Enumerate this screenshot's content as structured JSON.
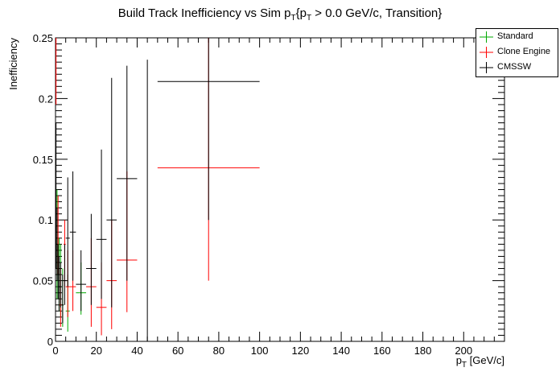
{
  "chart_data": {
    "type": "scatter",
    "title": "Build Track Inefficiency vs Sim p_T{p_T > 0.0 GeV/c, Transition}",
    "title_main": "Build Track Inefficiency vs Sim p",
    "title_sub1": "T",
    "title_mid": "{p",
    "title_sub2": "T",
    "title_tail": " > 0.0 GeV/c, Transition}",
    "ylabel": "Inefficiency",
    "xlabel": "p_T [GeV/c]",
    "xlabel_main": "p",
    "xlabel_sub": "T",
    "xlabel_unit": "[GeV/c]",
    "xlim": [
      0,
      220
    ],
    "ylim": [
      0,
      0.25
    ],
    "x_ticks": [
      "0",
      "20",
      "40",
      "60",
      "80",
      "100",
      "120",
      "140",
      "160",
      "180",
      "200"
    ],
    "x_tick_values": [
      0,
      20,
      40,
      60,
      80,
      100,
      120,
      140,
      160,
      180,
      200
    ],
    "y_ticks": [
      "0",
      "0.05",
      "0.1",
      "0.15",
      "0.2",
      "0.25"
    ],
    "y_tick_values": [
      0,
      0.05,
      0.1,
      0.15,
      0.2,
      0.25
    ],
    "grid": false,
    "legend_position": "top-right",
    "series": [
      {
        "name": "Standard",
        "color": "#00aa00",
        "points": [
          {
            "x": 0.75,
            "xlo": 0.5,
            "xhi": 1.0,
            "y": 0.07,
            "ylo": 0.035,
            "yhi": 0.125
          },
          {
            "x": 1.75,
            "xlo": 1.5,
            "xhi": 2.0,
            "y": 0.05,
            "ylo": 0.025,
            "yhi": 0.085
          },
          {
            "x": 2.5,
            "xlo": 2.0,
            "xhi": 3.0,
            "y": 0.045,
            "ylo": 0.02,
            "yhi": 0.08
          },
          {
            "x": 3.5,
            "xlo": 3.0,
            "xhi": 4.0,
            "y": 0.03,
            "ylo": 0.012,
            "yhi": 0.06
          },
          {
            "x": 6.0,
            "xlo": 5.0,
            "xhi": 7.0,
            "y": 0.025,
            "ylo": 0.008,
            "yhi": 0.055
          },
          {
            "x": 12.5,
            "xlo": 10.0,
            "xhi": 15.0,
            "y": 0.04,
            "ylo": 0.022,
            "yhi": 0.065
          }
        ]
      },
      {
        "name": "Clone Engine",
        "color": "#ff0000",
        "points": [
          {
            "x": 0.25,
            "xlo": 0.0,
            "xhi": 0.5,
            "y": 0.22,
            "ylo": 0.195,
            "yhi": 0.25
          },
          {
            "x": 1.25,
            "xlo": 1.0,
            "xhi": 1.5,
            "y": 0.085,
            "ylo": 0.055,
            "yhi": 0.12
          },
          {
            "x": 2.5,
            "xlo": 2.0,
            "xhi": 3.0,
            "y": 0.03,
            "ylo": 0.012,
            "yhi": 0.06
          },
          {
            "x": 4.5,
            "xlo": 4.0,
            "xhi": 5.0,
            "y": 0.08,
            "ylo": 0.045,
            "yhi": 0.1
          },
          {
            "x": 6.0,
            "xlo": 5.0,
            "xhi": 7.0,
            "y": 0.045,
            "ylo": 0.02,
            "yhi": 0.075
          },
          {
            "x": 8.5,
            "xlo": 7.0,
            "xhi": 10.0,
            "y": 0.045,
            "ylo": 0.025,
            "yhi": 0.075
          },
          {
            "x": 17.5,
            "xlo": 15.0,
            "xhi": 20.0,
            "y": 0.045,
            "ylo": 0.012,
            "yhi": 0.085
          },
          {
            "x": 22.5,
            "xlo": 20.0,
            "xhi": 25.0,
            "y": 0.028,
            "ylo": 0.005,
            "yhi": 0.065
          },
          {
            "x": 27.5,
            "xlo": 25.0,
            "xhi": 30.0,
            "y": 0.05,
            "ylo": 0.01,
            "yhi": 0.1
          },
          {
            "x": 35.0,
            "xlo": 30.0,
            "xhi": 40.0,
            "y": 0.067,
            "ylo": 0.024,
            "yhi": 0.14
          },
          {
            "x": 75.0,
            "xlo": 50.0,
            "xhi": 100.0,
            "y": 0.143,
            "ylo": 0.05,
            "yhi": 0.25
          }
        ]
      },
      {
        "name": "CMSSW",
        "color": "#000000",
        "points": [
          {
            "x": 0.25,
            "xlo": 0.0,
            "xhi": 0.5,
            "y": 0.12,
            "ylo": 0.06,
            "yhi": 0.18
          },
          {
            "x": 0.75,
            "xlo": 0.5,
            "xhi": 1.0,
            "y": 0.08,
            "ylo": 0.05,
            "yhi": 0.11
          },
          {
            "x": 1.25,
            "xlo": 1.0,
            "xhi": 1.5,
            "y": 0.055,
            "ylo": 0.035,
            "yhi": 0.08
          },
          {
            "x": 1.75,
            "xlo": 1.5,
            "xhi": 2.0,
            "y": 0.045,
            "ylo": 0.025,
            "yhi": 0.07
          },
          {
            "x": 2.5,
            "xlo": 2.0,
            "xhi": 3.0,
            "y": 0.045,
            "ylo": 0.028,
            "yhi": 0.065
          },
          {
            "x": 3.5,
            "xlo": 3.0,
            "xhi": 4.0,
            "y": 0.03,
            "ylo": 0.015,
            "yhi": 0.055
          },
          {
            "x": 4.5,
            "xlo": 4.0,
            "xhi": 5.0,
            "y": 0.05,
            "ylo": 0.03,
            "yhi": 0.08
          },
          {
            "x": 6.0,
            "xlo": 5.0,
            "xhi": 7.0,
            "y": 0.085,
            "ylo": 0.045,
            "yhi": 0.135
          },
          {
            "x": 8.5,
            "xlo": 7.0,
            "xhi": 10.0,
            "y": 0.09,
            "ylo": 0.05,
            "yhi": 0.14
          },
          {
            "x": 12.5,
            "xlo": 10.0,
            "xhi": 15.0,
            "y": 0.047,
            "ylo": 0.025,
            "yhi": 0.075
          },
          {
            "x": 17.5,
            "xlo": 15.0,
            "xhi": 20.0,
            "y": 0.06,
            "ylo": 0.03,
            "yhi": 0.105
          },
          {
            "x": 22.5,
            "xlo": 20.0,
            "xhi": 25.0,
            "y": 0.084,
            "ylo": 0.035,
            "yhi": 0.158
          },
          {
            "x": 27.5,
            "xlo": 25.0,
            "xhi": 30.0,
            "y": 0.1,
            "ylo": 0.028,
            "yhi": 0.217
          },
          {
            "x": 35.0,
            "xlo": 30.0,
            "xhi": 40.0,
            "y": 0.134,
            "ylo": 0.05,
            "yhi": 0.227
          },
          {
            "x": 45.0,
            "xlo": 45.0,
            "xhi": 45.0,
            "y": 0.115,
            "ylo": 0.0,
            "yhi": 0.232
          },
          {
            "x": 75.0,
            "xlo": 50.0,
            "xhi": 100.0,
            "y": 0.214,
            "ylo": 0.1,
            "yhi": 0.25
          }
        ]
      }
    ]
  }
}
